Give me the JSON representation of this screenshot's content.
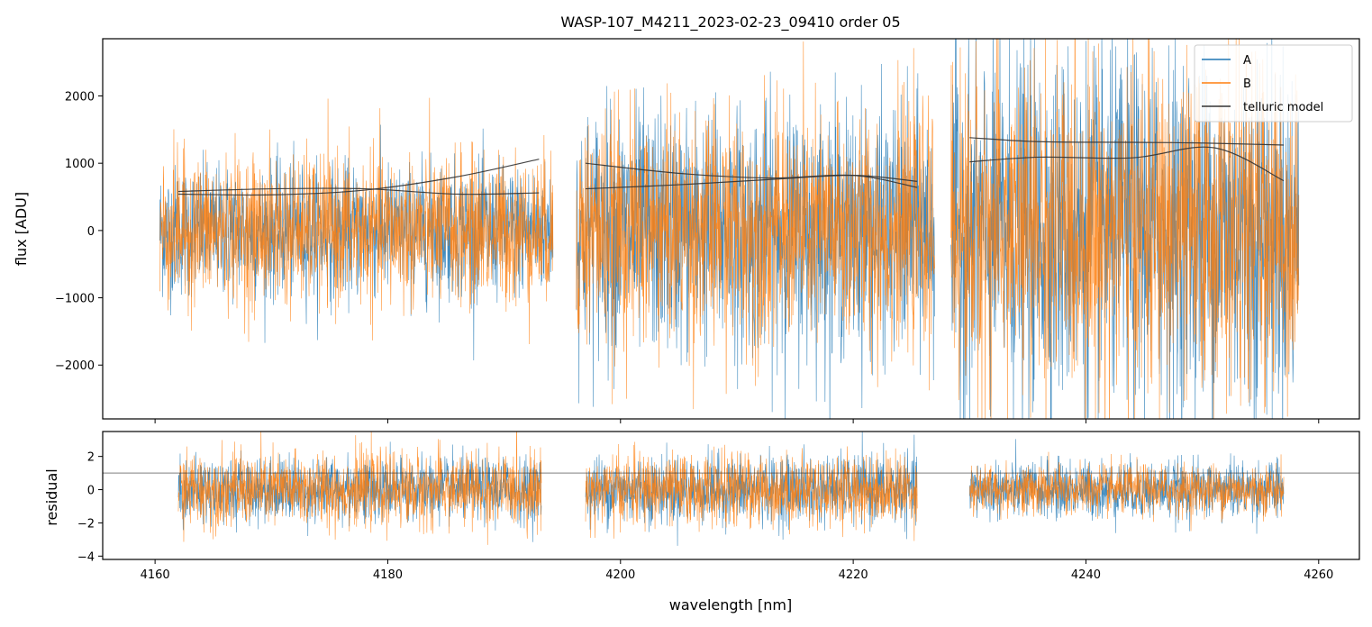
{
  "chart_data": [
    {
      "type": "line",
      "title": "WASP-107_M4211_2023-02-23_09410  order 05",
      "xlabel": "",
      "ylabel": "flux [ADU]",
      "xlim": [
        4155.5,
        4263.5
      ],
      "ylim": [
        -2800,
        2850
      ],
      "yticks": [
        -2000,
        -1000,
        0,
        1000,
        2000
      ],
      "yticklabels": [
        "−2000",
        "−1000",
        "0",
        "1000",
        "2000"
      ],
      "xticks": [
        4160,
        4180,
        4200,
        4220,
        4240,
        4260
      ],
      "legend": {
        "position": "top-right",
        "entries": [
          {
            "label": "A",
            "color": "#1f77b4"
          },
          {
            "label": "B",
            "color": "#ff7f0e"
          },
          {
            "label": "telluric model",
            "color": "#333333"
          }
        ]
      },
      "segments": [
        {
          "xrange": [
            4160.4,
            4194.2
          ],
          "A_noise_sigma": 480,
          "B_noise_sigma": 550
        },
        {
          "xrange": [
            4196.2,
            4227.0
          ],
          "A_noise_sigma": 900,
          "B_noise_sigma": 850
        },
        {
          "xrange": [
            4228.4,
            4258.3
          ],
          "A_noise_sigma": 1300,
          "B_noise_sigma": 1200
        }
      ],
      "series": [
        {
          "name": "telluric model",
          "color": "#333333",
          "curves": [
            {
              "x": [
                4162,
                4170,
                4178,
                4186,
                4193
              ],
              "y": [
                580,
                620,
                620,
                540,
                560
              ]
            },
            {
              "x": [
                4162,
                4170,
                4178,
                4186,
                4193
              ],
              "y": [
                540,
                530,
                600,
                800,
                1060
              ]
            },
            {
              "x": [
                4197,
                4205,
                4213,
                4220,
                4225.5
              ],
              "y": [
                1000,
                850,
                780,
                820,
                640
              ]
            },
            {
              "x": [
                4197,
                4205,
                4213,
                4220,
                4225.5
              ],
              "y": [
                620,
                680,
                760,
                820,
                730
              ]
            },
            {
              "x": [
                4230,
                4236,
                4244,
                4250,
                4257
              ],
              "y": [
                1380,
                1320,
                1310,
                1300,
                1270
              ]
            },
            {
              "x": [
                4230,
                4236,
                4244,
                4251,
                4257
              ],
              "y": [
                1020,
                1090,
                1080,
                1230,
                740
              ]
            }
          ]
        }
      ]
    },
    {
      "type": "line",
      "title": "",
      "xlabel": "wavelength [nm]",
      "ylabel": "residual",
      "xlim": [
        4155.5,
        4263.5
      ],
      "ylim": [
        -4.2,
        3.5
      ],
      "yticks": [
        -4,
        -2,
        0,
        2
      ],
      "yticklabels": [
        "−4",
        "−2",
        "0",
        "2"
      ],
      "xticks": [
        4160,
        4180,
        4200,
        4220,
        4240,
        4260
      ],
      "xticklabels": [
        "4160",
        "4180",
        "4200",
        "4220",
        "4240",
        "4260"
      ],
      "hline": 1,
      "segments": [
        {
          "xrange": [
            4162.0,
            4193.2
          ],
          "A_noise_sigma": 0.95,
          "B_noise_sigma": 1.1
        },
        {
          "xrange": [
            4197.0,
            4225.5
          ],
          "A_noise_sigma": 1.0,
          "B_noise_sigma": 1.05
        },
        {
          "xrange": [
            4230.0,
            4257.0
          ],
          "A_noise_sigma": 0.85,
          "B_noise_sigma": 0.75
        }
      ]
    }
  ]
}
